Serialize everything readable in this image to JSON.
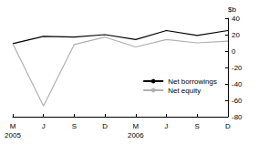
{
  "chart_data": {
    "type": "line",
    "y_label": "$b",
    "categories": [
      "M\n2005",
      "J",
      "S",
      "D",
      "M\n2006",
      "J",
      "S",
      "D"
    ],
    "series": [
      {
        "name": "Net borrowings",
        "color": "#000000",
        "values": [
          9,
          18,
          17,
          20,
          14,
          25,
          19,
          25
        ]
      },
      {
        "name": "Net equity",
        "color": "#b0b0b0",
        "values": [
          9,
          -67,
          8,
          17,
          5,
          14,
          10,
          12
        ]
      }
    ],
    "ylim": [
      -80,
      40
    ],
    "yticks": [
      -80,
      -60,
      -40,
      -20,
      0,
      20,
      40
    ],
    "grid": false,
    "legend": "right"
  }
}
